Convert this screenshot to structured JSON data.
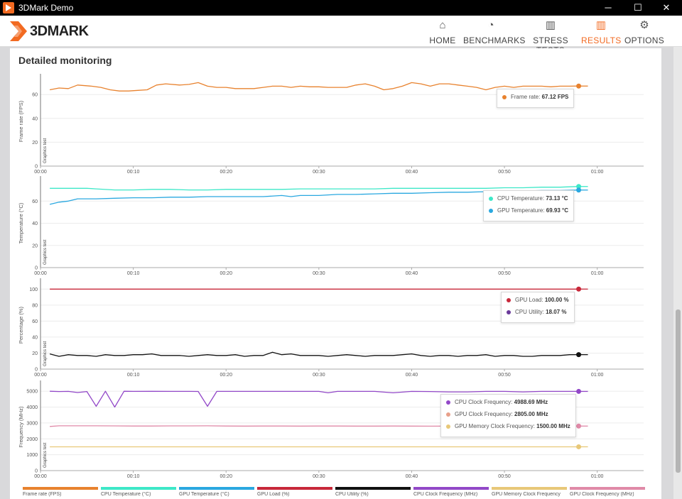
{
  "window": {
    "title": "3DMark Demo",
    "minimize": "─",
    "maximize": "☐",
    "close": "✕"
  },
  "logo": {
    "text": "3DMARK"
  },
  "nav": [
    {
      "label": "HOME",
      "icon": "home-icon",
      "glyph": "⌂",
      "active": false
    },
    {
      "label": "BENCHMARKS",
      "icon": "gauge-icon",
      "glyph": "◔",
      "active": false
    },
    {
      "label": "STRESS TESTS",
      "icon": "bar-chart-icon",
      "glyph": "▥",
      "active": false
    },
    {
      "label": "RESULTS",
      "icon": "results-chart-icon",
      "glyph": "▥",
      "active": true
    },
    {
      "label": "OPTIONS",
      "icon": "gear-icon",
      "glyph": "⚙",
      "active": false
    }
  ],
  "page": {
    "title": "Detailed monitoring"
  },
  "colors": {
    "accent": "#f26a21",
    "frame_rate": "#e8822e",
    "cpu_temp": "#3de8c8",
    "gpu_temp": "#2aa8e0",
    "gpu_load": "#c8283a",
    "cpu_util": "#111111",
    "cpu_clock": "#9248c8",
    "gpu_mem_clock": "#e8c878",
    "gpu_clock": "#e08aa8"
  },
  "chart_data": [
    {
      "type": "line",
      "ylabel": "Frame rate (FPS)",
      "region_label": "Graphics test",
      "ylim": [
        0,
        75
      ],
      "yticks": [
        "0",
        "20",
        "40",
        "60"
      ],
      "yticks_values": [
        0,
        20,
        40,
        60
      ],
      "xticks": [
        "00:00",
        "00:10",
        "00:20",
        "00:30",
        "00:40",
        "00:50",
        "01:00"
      ],
      "xlim": [
        0,
        65
      ],
      "grid": true,
      "series": [
        {
          "name": "Frame rate",
          "color": "#e8822e",
          "x": [
            1,
            2,
            3,
            4,
            5.5,
            6.5,
            7.5,
            8.5,
            9.5,
            10.5,
            11.5,
            12.5,
            13.5,
            15,
            16,
            17,
            18,
            19,
            20,
            21,
            22,
            23,
            24,
            25,
            26,
            27,
            28,
            29,
            30,
            31,
            32,
            33,
            34,
            35,
            36,
            37,
            38,
            39,
            40,
            41,
            42,
            43,
            44,
            45,
            46,
            47,
            48,
            49,
            50,
            51,
            52,
            53,
            54,
            55,
            56,
            57,
            58
          ],
          "values": [
            64,
            65.5,
            65,
            68,
            67,
            66,
            64,
            63,
            63,
            63.5,
            64,
            68,
            69,
            68,
            68.5,
            70,
            67,
            66,
            66,
            65,
            65,
            65,
            66,
            67,
            67,
            66,
            67,
            66.5,
            66.5,
            66,
            66,
            66,
            68,
            69,
            67,
            64,
            65,
            67,
            70,
            69,
            67,
            69,
            69,
            68,
            67,
            66,
            64,
            66,
            67,
            66,
            67,
            67,
            67,
            66.5,
            67,
            67,
            67.12
          ]
        }
      ],
      "tooltip": [
        {
          "label": "Frame rate:",
          "value": "67.12 FPS",
          "color": "#e8822e"
        }
      ]
    },
    {
      "type": "line",
      "ylabel": "Temperature (°C)",
      "region_label": "Graphics test",
      "ylim": [
        0,
        80
      ],
      "yticks": [
        "0",
        "20",
        "40",
        "60"
      ],
      "yticks_values": [
        0,
        20,
        40,
        60
      ],
      "xticks": [
        "00:00",
        "00:10",
        "00:20",
        "00:30",
        "00:40",
        "00:50",
        "01:00"
      ],
      "xlim": [
        0,
        65
      ],
      "grid": true,
      "series": [
        {
          "name": "CPU Temperature",
          "color": "#3de8c8",
          "x": [
            1,
            3,
            5,
            6,
            8,
            10,
            12,
            14,
            16,
            18,
            20,
            22,
            24,
            26,
            28,
            30,
            32,
            34,
            36,
            38,
            40,
            42,
            44,
            46,
            48,
            50,
            52,
            54,
            56,
            58
          ],
          "values": [
            71.5,
            71.5,
            71.5,
            71,
            70,
            70,
            70.5,
            70.5,
            70,
            70,
            70.5,
            70.5,
            70.5,
            70.5,
            71,
            71,
            71,
            71,
            71,
            71.5,
            71.5,
            71.5,
            71.5,
            71.5,
            71.5,
            72,
            72,
            72.5,
            72.5,
            73.13
          ]
        },
        {
          "name": "GPU Temperature",
          "color": "#2aa8e0",
          "x": [
            1,
            2,
            3,
            4,
            6,
            8,
            10,
            12,
            14,
            16,
            18,
            20,
            22,
            24,
            26,
            27,
            28,
            30,
            32,
            34,
            36,
            38,
            40,
            42,
            44,
            46,
            48,
            50,
            52,
            54,
            56,
            58
          ],
          "values": [
            57,
            59,
            60,
            62,
            62,
            62.5,
            63,
            63,
            63.5,
            63.5,
            64,
            64,
            64,
            64,
            65,
            64,
            65,
            65,
            66,
            66,
            66.5,
            67,
            67,
            67.5,
            68,
            68,
            68.5,
            69,
            69,
            69.5,
            69.5,
            69.93
          ]
        }
      ],
      "tooltip": [
        {
          "label": "CPU Temperature:",
          "value": "73.13 °C",
          "color": "#3de8c8"
        },
        {
          "label": "GPU Temperature:",
          "value": "69.93 °C",
          "color": "#2aa8e0"
        }
      ]
    },
    {
      "type": "line",
      "ylabel": "Percentage (%)",
      "region_label": "Graphics test",
      "ylim": [
        0,
        110
      ],
      "yticks": [
        "0",
        "20",
        "40",
        "60",
        "80",
        "100"
      ],
      "yticks_values": [
        0,
        20,
        40,
        60,
        80,
        100
      ],
      "xticks": [
        "00:00",
        "00:10",
        "00:20",
        "00:30",
        "00:40",
        "00:50",
        "01:00"
      ],
      "xlim": [
        0,
        65
      ],
      "grid": true,
      "series": [
        {
          "name": "GPU Load",
          "color": "#c8283a",
          "x": [
            1,
            58
          ],
          "values": [
            100,
            100
          ]
        },
        {
          "name": "CPU Utility",
          "color": "#111111",
          "x": [
            1,
            2,
            3,
            4,
            5,
            6,
            7,
            8,
            9,
            10,
            11,
            12,
            13,
            14,
            15,
            16,
            17,
            18,
            19,
            20,
            21,
            22,
            23,
            24,
            25,
            26,
            27,
            28,
            29,
            30,
            31,
            32,
            33,
            34,
            35,
            36,
            37,
            38,
            39,
            40,
            41,
            42,
            43,
            44,
            45,
            46,
            47,
            48,
            49,
            50,
            51,
            52,
            53,
            54,
            55,
            56,
            57,
            58
          ],
          "values": [
            19,
            16,
            18,
            17,
            17,
            16,
            18,
            17,
            17,
            18,
            18,
            19,
            17,
            17,
            17,
            16,
            17,
            18,
            17,
            17,
            18,
            16,
            17,
            17,
            21,
            18,
            19,
            17,
            17,
            17,
            16,
            17,
            18,
            17,
            16,
            17,
            17,
            17,
            18,
            19,
            17,
            16,
            17,
            17,
            16,
            17,
            17,
            18,
            16,
            17,
            17,
            16,
            16,
            17,
            17,
            17,
            18,
            18.07
          ]
        }
      ],
      "tooltip": [
        {
          "label": "GPU Load:",
          "value": "100.00 %",
          "color": "#c8283a"
        },
        {
          "label": "CPU Utility:",
          "value": "18.07 %",
          "color": "#6a3a9a"
        }
      ]
    },
    {
      "type": "line",
      "ylabel": "Frequency (MHz)",
      "region_label": "Graphics test",
      "ylim": [
        0,
        5500
      ],
      "yticks": [
        "0",
        "1000",
        "2000",
        "3000",
        "4000",
        "5000"
      ],
      "yticks_values": [
        0,
        1000,
        2000,
        3000,
        4000,
        5000
      ],
      "xticks": [
        "00:00",
        "00:10",
        "00:20",
        "00:30",
        "00:40",
        "00:50",
        "01:00"
      ],
      "xlim": [
        0,
        65
      ],
      "grid": true,
      "series": [
        {
          "name": "CPU Clock Frequency",
          "color": "#9248c8",
          "x": [
            1,
            2,
            3,
            4,
            5,
            6,
            7,
            8,
            9,
            10,
            12,
            14,
            16,
            17,
            18,
            19,
            20,
            22,
            24,
            26,
            28,
            30,
            31,
            32,
            34,
            36,
            38,
            40,
            42,
            44,
            46,
            48,
            50,
            52,
            54,
            56,
            57,
            58
          ],
          "values": [
            5000,
            4980,
            4990,
            4920,
            4980,
            4050,
            5000,
            4000,
            5000,
            4990,
            4995,
            4990,
            4990,
            4985,
            4050,
            4990,
            4990,
            4990,
            4990,
            4990,
            4990,
            4990,
            4900,
            4990,
            4990,
            4990,
            4900,
            4990,
            4980,
            4960,
            4960,
            4990,
            4990,
            4960,
            4990,
            4990,
            4990,
            4988.69
          ]
        },
        {
          "name": "GPU Clock Frequency",
          "color": "#e08aa8",
          "x": [
            1,
            2,
            4,
            6,
            8,
            10,
            12,
            14,
            16,
            18,
            20,
            22,
            24,
            26,
            28,
            30,
            32,
            34,
            36,
            38,
            40,
            42,
            44,
            46,
            48,
            50,
            52,
            54,
            56,
            58
          ],
          "values": [
            2780,
            2820,
            2820,
            2820,
            2815,
            2810,
            2810,
            2815,
            2815,
            2820,
            2810,
            2805,
            2810,
            2810,
            2805,
            2810,
            2810,
            2805,
            2805,
            2810,
            2805,
            2800,
            2805,
            2805,
            2805,
            2805,
            2800,
            2805,
            2805,
            2805
          ]
        },
        {
          "name": "GPU Memory Clock Frequency",
          "color": "#e8c878",
          "x": [
            1,
            58
          ],
          "values": [
            1500,
            1500
          ]
        }
      ],
      "tooltip": [
        {
          "label": "CPU Clock Frequency:",
          "value": "4988.69 MHz",
          "color": "#9248c8"
        },
        {
          "label": "GPU Clock Frequency:",
          "value": "2805.00 MHz",
          "color": "#e8a08a"
        },
        {
          "label": "GPU Memory Clock Frequency:",
          "value": "1500.00 MHz",
          "color": "#e8c878"
        }
      ]
    }
  ],
  "legend": [
    {
      "label": "Frame rate (FPS)",
      "color": "#e8822e"
    },
    {
      "label": "CPU Temperature (°C)",
      "color": "#3de8c8"
    },
    {
      "label": "GPU Temperature (°C)",
      "color": "#2aa8e0"
    },
    {
      "label": "GPU Load (%)",
      "color": "#c8283a"
    },
    {
      "label": "CPU Utility (%)",
      "color": "#111111"
    },
    {
      "label": "CPU Clock Frequency (MHz)",
      "color": "#9248c8"
    },
    {
      "label": "GPU Memory Clock Frequency",
      "color": "#e8c878"
    },
    {
      "label": "GPU Clock Frequency (MHz)",
      "color": "#e08aa8"
    }
  ]
}
